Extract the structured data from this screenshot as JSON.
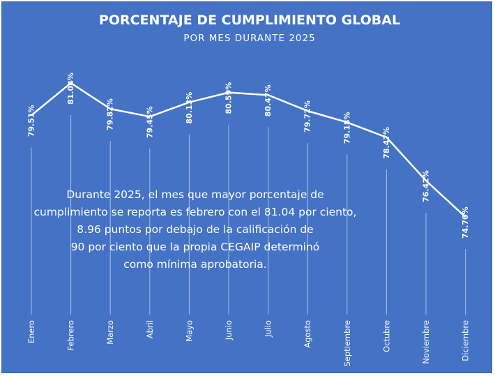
{
  "chart_data": {
    "type": "line",
    "title": "PORCENTAJE DE CUMPLIMIENTO GLOBAL",
    "subtitle": "POR MES DURANTE 2025",
    "categories": [
      "Enero",
      "Febrero",
      "Marzo",
      "Abril",
      "Mayo",
      "Junio",
      "Julio",
      "Agosto",
      "Septiembre",
      "Octubre",
      "Noviembre",
      "Diciembre"
    ],
    "values": [
      79.51,
      81.04,
      79.82,
      79.45,
      80.13,
      80.59,
      80.47,
      79.72,
      79.18,
      78.47,
      76.42,
      74.7
    ],
    "data_labels": [
      "79.51%",
      "81.04%",
      "79.82%",
      "79.45%",
      "80.13%",
      "80.59%",
      "80.47%",
      "79.72%",
      "79.18%",
      "78.47%",
      "76.42%",
      "74.70%"
    ],
    "series_color": "#ffffff",
    "background_color": "#4472C4",
    "annotation": [
      "Durante 2025, el mes que mayor porcentaje de",
      "cumplimiento se reporta es febrero con el 81.04 por ciento,",
      "8.96 puntos por debajo de la calificación de",
      "90 por ciento que la propia CEGAIP determinó",
      "como mínima aprobatoria."
    ]
  }
}
